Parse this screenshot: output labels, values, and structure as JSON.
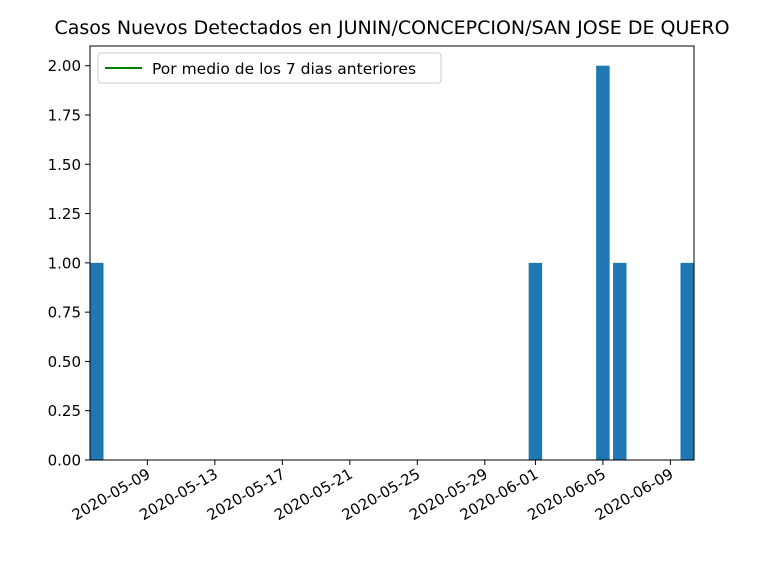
{
  "chart_data": {
    "type": "bar",
    "title": "Casos Nuevos Detectados en JUNIN/CONCEPCION/SAN JOSE DE QUERO",
    "xlabel": "",
    "ylabel": "",
    "x_range": [
      "2020-05-06",
      "2020-06-10"
    ],
    "ylim": [
      0,
      2.1
    ],
    "y_ticks": [
      0,
      0.25,
      0.5,
      0.75,
      1.0,
      1.25,
      1.5,
      1.75,
      2.0
    ],
    "y_tick_labels": [
      "0.00",
      "0.25",
      "0.50",
      "0.75",
      "1.00",
      "1.25",
      "1.50",
      "1.75",
      "2.00"
    ],
    "x_ticks": [
      "2020-05-09",
      "2020-05-13",
      "2020-05-17",
      "2020-05-21",
      "2020-05-25",
      "2020-05-29",
      "2020-06-01",
      "2020-06-05",
      "2020-06-09"
    ],
    "grid": false,
    "legend_position": "top-left",
    "bar_color": "#1f77b4",
    "bars": [
      {
        "x": "2020-05-06",
        "value": 1
      },
      {
        "x": "2020-06-01",
        "value": 1
      },
      {
        "x": "2020-06-05",
        "value": 2
      },
      {
        "x": "2020-06-06",
        "value": 1
      },
      {
        "x": "2020-06-10",
        "value": 1
      }
    ],
    "series": [
      {
        "name": "Por medio de los 7 dias anteriores",
        "type": "line",
        "color": "#008000",
        "values": []
      }
    ]
  }
}
